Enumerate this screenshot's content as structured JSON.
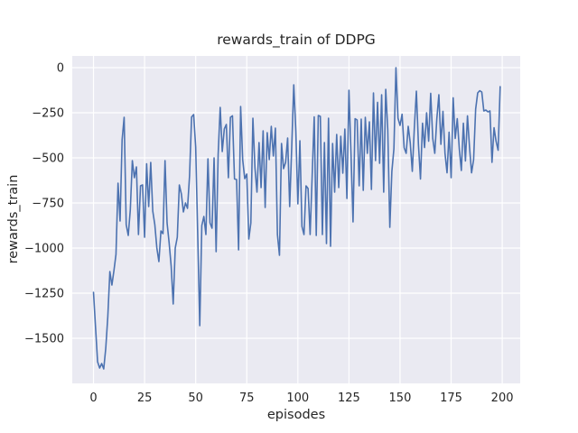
{
  "chart_data": {
    "type": "line",
    "title": "rewards_train of DDPG",
    "xlabel": "episodes",
    "ylabel": "rewards_train",
    "grid": true,
    "legend": false,
    "xlim": [
      -10.4,
      208.8
    ],
    "ylim": [
      -1750,
      65
    ],
    "x_ticks": [
      0,
      25,
      50,
      75,
      100,
      125,
      150,
      175,
      200
    ],
    "x_tick_labels": [
      "0",
      "25",
      "50",
      "75",
      "100",
      "125",
      "150",
      "175",
      "200"
    ],
    "y_ticks": [
      0,
      -250,
      -500,
      -750,
      -1000,
      -1250,
      -1500
    ],
    "y_tick_labels": [
      "0",
      "−250",
      "−500",
      "−750",
      "−1000",
      "−1250",
      "−1500"
    ],
    "styles": {
      "fig_bg": "#ffffff",
      "axes_bg": "#eaeaf2",
      "grid_color": "#ffffff",
      "text_color": "#262626",
      "line_color": "#4c72b0"
    },
    "x_start": 0,
    "x_step": 1,
    "series": [
      {
        "name": "rewards_train",
        "color": "#4c72b0",
        "values": [
          -1245,
          -1440,
          -1630,
          -1665,
          -1640,
          -1670,
          -1555,
          -1380,
          -1130,
          -1205,
          -1125,
          -1035,
          -640,
          -850,
          -400,
          -275,
          -870,
          -930,
          -790,
          -515,
          -610,
          -550,
          -925,
          -655,
          -650,
          -940,
          -533,
          -770,
          -525,
          -795,
          -870,
          -1000,
          -1075,
          -905,
          -920,
          -515,
          -860,
          -970,
          -1100,
          -1310,
          -1000,
          -940,
          -650,
          -700,
          -800,
          -750,
          -780,
          -600,
          -273,
          -260,
          -440,
          -925,
          -1430,
          -875,
          -825,
          -925,
          -505,
          -860,
          -890,
          -500,
          -1020,
          -480,
          -220,
          -465,
          -340,
          -315,
          -610,
          -275,
          -267,
          -617,
          -620,
          -1010,
          -215,
          -510,
          -615,
          -590,
          -950,
          -860,
          -280,
          -555,
          -690,
          -415,
          -665,
          -350,
          -775,
          -360,
          -510,
          -325,
          -490,
          -335,
          -925,
          -1040,
          -420,
          -560,
          -525,
          -390,
          -770,
          -440,
          -95,
          -350,
          -755,
          -405,
          -880,
          -925,
          -655,
          -670,
          -925,
          -600,
          -273,
          -930,
          -265,
          -270,
          -925,
          -415,
          -975,
          -280,
          -990,
          -420,
          -690,
          -370,
          -665,
          -380,
          -585,
          -340,
          -725,
          -125,
          -475,
          -855,
          -283,
          -290,
          -655,
          -285,
          -680,
          -275,
          -475,
          -300,
          -675,
          -140,
          -515,
          -192,
          -530,
          -150,
          -690,
          -120,
          -345,
          -885,
          -575,
          -450,
          0,
          -280,
          -320,
          -258,
          -443,
          -475,
          -325,
          -417,
          -575,
          -333,
          -130,
          -425,
          -617,
          -308,
          -443,
          -250,
          -408,
          -142,
          -392,
          -475,
          -283,
          -150,
          -425,
          -242,
          -475,
          -583,
          -358,
          -610,
          -167,
          -392,
          -283,
          -450,
          -570,
          -308,
          -517,
          -267,
          -440,
          -583,
          -510,
          -230,
          -140,
          -128,
          -135,
          -240,
          -235,
          -245,
          -240,
          -525,
          -333,
          -408,
          -458,
          -105
        ]
      }
    ]
  }
}
